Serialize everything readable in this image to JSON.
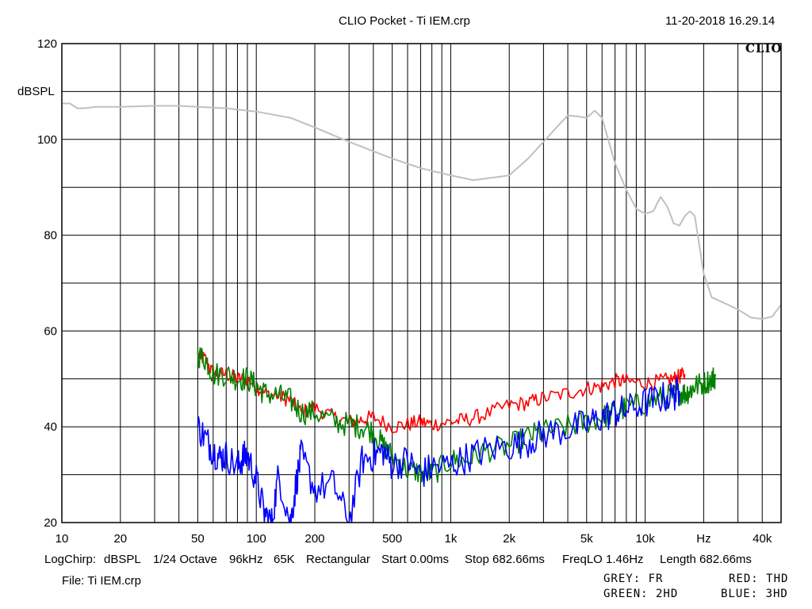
{
  "header": {
    "title": "CLIO Pocket - Ti IEM.crp",
    "timestamp": "11-20-2018 16.29.14",
    "logo": "CLIO"
  },
  "footer": {
    "settings": [
      "LogChirp:",
      "dBSPL",
      "1/24 Octave",
      "96kHz",
      "65K",
      "Rectangular",
      "Start 0.00ms",
      "Stop 682.66ms",
      "FreqLO 1.46Hz",
      "Length 682.66ms"
    ],
    "file": "File: Ti IEM.crp",
    "legend": {
      "grey": "GREY: FR",
      "red": "RED: THD",
      "green": "GREEN: 2HD",
      "blue": "BLUE: 3HD"
    }
  },
  "chart_data": {
    "type": "line",
    "title": "CLIO Pocket - Ti IEM.crp",
    "ylabel": "dBSPL",
    "xlabel": "Hz",
    "x_scale": "log",
    "xlim": [
      10,
      50000
    ],
    "ylim": [
      20,
      120
    ],
    "yticks": [
      20,
      40,
      60,
      80,
      100,
      120
    ],
    "xtick_labels": [
      {
        "v": 10,
        "t": "10"
      },
      {
        "v": 20,
        "t": "20"
      },
      {
        "v": 50,
        "t": "50"
      },
      {
        "v": 100,
        "t": "100"
      },
      {
        "v": 200,
        "t": "200"
      },
      {
        "v": 500,
        "t": "500"
      },
      {
        "v": 1000,
        "t": "1k"
      },
      {
        "v": 2000,
        "t": "2k"
      },
      {
        "v": 5000,
        "t": "5k"
      },
      {
        "v": 10000,
        "t": "10k"
      },
      {
        "v": 20000,
        "t": "Hz"
      },
      {
        "v": 40000,
        "t": "40k"
      }
    ],
    "grid": true,
    "colors": {
      "grey": "#c0c0c0",
      "red": "#ff0000",
      "green": "#008000",
      "blue": "#0000ff"
    },
    "series": [
      {
        "name": "GREY: FR",
        "color": "#c0c0c0",
        "x": [
          10,
          11,
          12,
          13,
          15,
          20,
          30,
          40,
          50,
          70,
          100,
          150,
          200,
          300,
          500,
          700,
          1000,
          1300,
          1500,
          2000,
          2500,
          3000,
          3500,
          4000,
          4500,
          5000,
          5500,
          6000,
          7000,
          8000,
          9000,
          10000,
          11000,
          12000,
          13000,
          14000,
          15000,
          16000,
          17000,
          18000,
          20000,
          22000,
          25000,
          30000,
          35000,
          40000,
          45000,
          50000
        ],
        "y": [
          107.5,
          107.5,
          106.5,
          106.5,
          106.8,
          106.8,
          107,
          107,
          106.8,
          106.5,
          105.8,
          104.5,
          102.5,
          99.5,
          96,
          94,
          92.5,
          91.5,
          91.8,
          92.5,
          96,
          99.5,
          102.5,
          105,
          104.8,
          104.5,
          106,
          104.5,
          95,
          89.5,
          85.5,
          84.5,
          85,
          88,
          86,
          82.5,
          82,
          84,
          85,
          84,
          72,
          67,
          66,
          64.5,
          62.8,
          62.5,
          63,
          65.5
        ]
      },
      {
        "name": "RED: THD",
        "color": "#ff0000",
        "x": [
          50,
          55,
          60,
          70,
          80,
          90,
          100,
          110,
          130,
          150,
          170,
          200,
          250,
          300,
          350,
          400,
          500,
          600,
          700,
          800,
          1000,
          1200,
          1500,
          2000,
          2500,
          3000,
          4000,
          5000,
          6000,
          7000,
          8000,
          10000,
          12000,
          14000,
          15000,
          16000
        ],
        "y": [
          55,
          54,
          51,
          51,
          50,
          50,
          48.5,
          47,
          46.5,
          45.5,
          43,
          44,
          42,
          41,
          41.5,
          42,
          40,
          40.5,
          41,
          40.5,
          41,
          41.5,
          42.5,
          44.5,
          45,
          46,
          47,
          48,
          48.5,
          49.5,
          49.5,
          49,
          49.5,
          50,
          50.5,
          51
        ]
      },
      {
        "name": "GREEN: 2HD",
        "color": "#008000",
        "x": [
          50,
          55,
          60,
          70,
          80,
          90,
          100,
          110,
          130,
          150,
          170,
          200,
          250,
          300,
          350,
          400,
          450,
          500,
          600,
          700,
          800,
          1000,
          1200,
          1500,
          2000,
          2500,
          3000,
          4000,
          5000,
          6000,
          7000,
          8000,
          10000,
          12000,
          14000,
          15000,
          16000,
          17000,
          18000,
          20000,
          22000,
          23000
        ],
        "y": [
          55,
          54,
          51,
          51,
          50,
          50,
          48.5,
          47,
          46.5,
          45.5,
          43,
          43,
          41,
          40.5,
          40,
          39,
          36,
          34,
          31,
          30.5,
          30,
          33,
          33,
          35,
          36,
          38,
          39,
          40,
          41,
          42,
          43,
          44,
          45,
          46,
          46.5,
          47,
          47,
          47.5,
          48.5,
          49,
          50,
          50.5
        ]
      },
      {
        "name": "BLUE: 3HD",
        "color": "#0000ff",
        "x": [
          50,
          55,
          60,
          65,
          70,
          80,
          85,
          90,
          100,
          110,
          120,
          130,
          150,
          160,
          170,
          200,
          250,
          300,
          350,
          400,
          450,
          500,
          600,
          700,
          800,
          1000,
          1200,
          1500,
          2000,
          2500,
          3000,
          4000,
          5000,
          6000,
          7000,
          8000,
          10000,
          12000,
          14000,
          15000
        ],
        "y": [
          40,
          37.5,
          35,
          33.5,
          34,
          31.5,
          33.5,
          34,
          29,
          22,
          20,
          30,
          20,
          28,
          34,
          27,
          28,
          20,
          33,
          34,
          35,
          32,
          33,
          30,
          31.5,
          32,
          33.5,
          35,
          36,
          37,
          38.5,
          39.5,
          40.5,
          42,
          43,
          43.5,
          45,
          46,
          46.5,
          47.5
        ]
      }
    ]
  }
}
